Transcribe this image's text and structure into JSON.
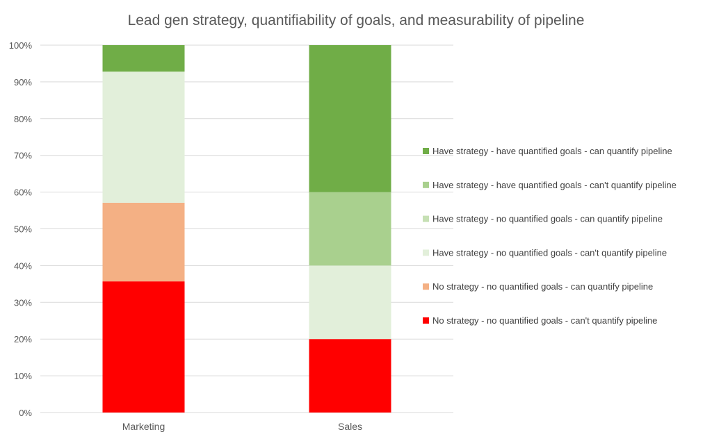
{
  "chart_data": {
    "type": "bar",
    "stacked": true,
    "percent_stacked": true,
    "title": "Lead gen strategy, quantifiability of goals, and measurability of pipeline",
    "xlabel": "",
    "ylabel": "",
    "ylim": [
      0,
      100
    ],
    "yticks": [
      "0%",
      "10%",
      "20%",
      "30%",
      "40%",
      "50%",
      "60%",
      "70%",
      "80%",
      "90%",
      "100%"
    ],
    "categories": [
      "Marketing",
      "Sales"
    ],
    "grid": true,
    "legend_position": "right",
    "series": [
      {
        "name": "No strategy - no quantified goals - can't quantify pipeline",
        "color": "#ff0000",
        "values": [
          35.7,
          20
        ]
      },
      {
        "name": "No strategy - no quantified goals - can quantify pipeline",
        "color": "#f4b084",
        "values": [
          21.4,
          0
        ]
      },
      {
        "name": "Have strategy - no quantified goals - can't quantify pipeline",
        "color": "#e2efda",
        "values": [
          35.7,
          20
        ]
      },
      {
        "name": "Have strategy - no quantified goals - can quantify pipeline",
        "color": "#c6e0b4",
        "values": [
          0,
          0
        ]
      },
      {
        "name": "Have strategy - have quantified goals - can't quantify pipeline",
        "color": "#a9d08e",
        "values": [
          0,
          20
        ]
      },
      {
        "name": "Have strategy - have quantified goals - can quantify pipeline",
        "color": "#70ad47",
        "values": [
          7.2,
          40
        ]
      }
    ]
  }
}
